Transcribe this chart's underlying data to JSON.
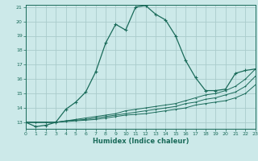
{
  "xlabel": "Humidex (Indice chaleur)",
  "bg_color": "#cce9e9",
  "grid_color": "#aacccc",
  "line_color": "#1a6b5a",
  "xmin": 0,
  "xmax": 23,
  "ymin": 13,
  "ymax": 21,
  "yticks": [
    13,
    14,
    15,
    16,
    17,
    18,
    19,
    20,
    21
  ],
  "xticks": [
    0,
    1,
    2,
    3,
    4,
    5,
    6,
    7,
    8,
    9,
    10,
    11,
    12,
    13,
    14,
    15,
    16,
    17,
    18,
    19,
    20,
    21,
    22,
    23
  ],
  "line1_x": [
    0,
    1,
    2,
    3,
    4,
    5,
    6,
    7,
    8,
    9,
    10,
    11,
    12,
    13,
    14,
    15,
    16,
    17,
    18,
    19,
    20,
    21,
    22,
    23
  ],
  "line1_y": [
    13.0,
    12.7,
    12.8,
    13.0,
    13.9,
    14.4,
    15.1,
    16.5,
    18.5,
    19.8,
    19.4,
    21.0,
    21.1,
    20.5,
    20.1,
    19.0,
    17.3,
    16.1,
    15.2,
    15.2,
    15.3,
    16.4,
    16.6,
    16.7
  ],
  "line2_x": [
    0,
    1,
    2,
    3,
    4,
    5,
    6,
    7,
    8,
    9,
    10,
    11,
    12,
    13,
    14,
    15,
    16,
    17,
    18,
    19,
    20,
    21,
    22,
    23
  ],
  "line2_y": [
    13.0,
    13.0,
    13.0,
    13.0,
    13.1,
    13.2,
    13.3,
    13.4,
    13.5,
    13.6,
    13.8,
    13.9,
    14.0,
    14.1,
    14.2,
    14.3,
    14.5,
    14.7,
    14.9,
    15.0,
    15.2,
    15.5,
    16.0,
    16.7
  ],
  "line3_x": [
    0,
    1,
    2,
    3,
    4,
    5,
    6,
    7,
    8,
    9,
    10,
    11,
    12,
    13,
    14,
    15,
    16,
    17,
    18,
    19,
    20,
    21,
    22,
    23
  ],
  "line3_y": [
    13.0,
    13.0,
    13.0,
    13.0,
    13.1,
    13.15,
    13.2,
    13.3,
    13.4,
    13.5,
    13.6,
    13.7,
    13.8,
    13.9,
    14.0,
    14.1,
    14.3,
    14.4,
    14.6,
    14.7,
    14.9,
    15.1,
    15.5,
    16.2
  ],
  "line4_x": [
    0,
    1,
    2,
    3,
    4,
    5,
    6,
    7,
    8,
    9,
    10,
    11,
    12,
    13,
    14,
    15,
    16,
    17,
    18,
    19,
    20,
    21,
    22,
    23
  ],
  "line4_y": [
    13.0,
    13.0,
    13.0,
    13.0,
    13.05,
    13.1,
    13.15,
    13.2,
    13.3,
    13.4,
    13.5,
    13.55,
    13.6,
    13.7,
    13.8,
    13.9,
    14.0,
    14.2,
    14.3,
    14.4,
    14.5,
    14.7,
    15.0,
    15.6
  ]
}
